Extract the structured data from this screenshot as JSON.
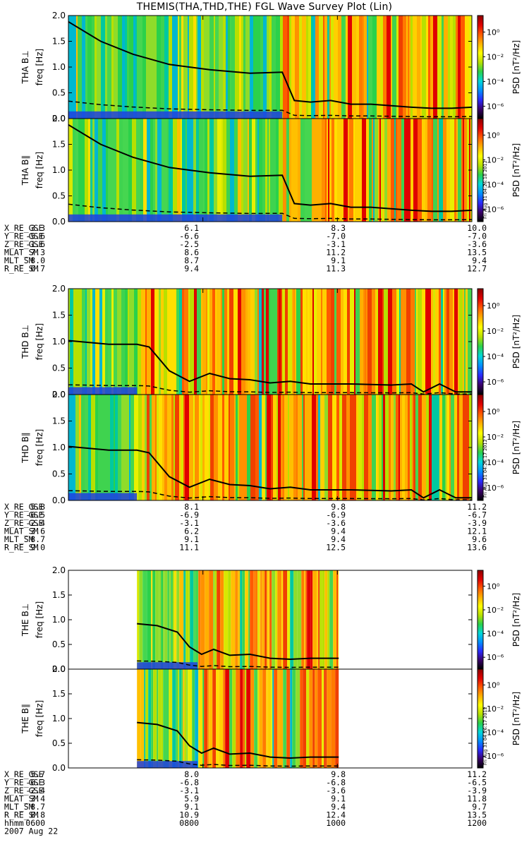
{
  "title": "THEMIS(THA,THD,THE) FGL Wave Survey Plot (Lin)",
  "colors": {
    "colorbar": [
      "#000000",
      "#3a006a",
      "#2a2aff",
      "#0090ff",
      "#00d8d8",
      "#2bd14a",
      "#b8e000",
      "#ffff00",
      "#ffb000",
      "#ff5a00",
      "#e00000",
      "#8b0000"
    ]
  },
  "chart_data": [
    {
      "type": "heatmap",
      "name": "THA",
      "panels": [
        {
          "ylabel_probe": "THA B⊥",
          "ylabel_axis": "freq [Hz]"
        },
        {
          "ylabel_probe": "THA B∥",
          "ylabel_axis": "freq [Hz]"
        }
      ],
      "ylim": [
        0,
        2.0
      ],
      "ytick_labels": [
        "0.0",
        "0.5",
        "1.0",
        "1.5",
        "2.0"
      ],
      "colorbar": {
        "label": "PSD [nT²/Hz]",
        "tick_labels": [
          "10⁰",
          "10⁻²",
          "10⁻⁴",
          "10⁻⁶"
        ]
      },
      "stamp": "Fri Aug 31 04:26:18 2012",
      "activity_start": 0.53,
      "gyro_x": [
        0,
        0.08,
        0.16,
        0.25,
        0.35,
        0.45,
        0.53,
        0.56,
        0.6,
        0.65,
        0.7,
        0.75,
        0.8,
        0.85,
        0.9,
        0.95,
        1.0
      ],
      "gyro_f": [
        1.88,
        1.5,
        1.25,
        1.05,
        0.95,
        0.88,
        0.9,
        0.35,
        0.32,
        0.35,
        0.28,
        0.28,
        0.25,
        0.22,
        0.2,
        0.2,
        0.22
      ],
      "ephemeris": {
        "X_RE_GSE": [
          "3.3",
          "6.1",
          "8.3",
          "10.0"
        ],
        "Y_RE_GSE": [
          "-5.6",
          "-6.6",
          "-7.0",
          "-7.0"
        ],
        "Z_RE_GSE": [
          "-1.6",
          "-2.5",
          "-3.1",
          "-3.6"
        ],
        "MLAT_SM": [
          "7.3",
          "8.6",
          "11.2",
          "13.5"
        ],
        "MLT_SM": [
          "8.0",
          "8.7",
          "9.1",
          "9.4"
        ],
        "R_RE_SM": [
          "6.7",
          "9.4",
          "11.3",
          "12.7"
        ]
      }
    },
    {
      "type": "heatmap",
      "name": "THD",
      "panels": [
        {
          "ylabel_probe": "THD B⊥",
          "ylabel_axis": "freq [Hz]"
        },
        {
          "ylabel_probe": "THD B∥",
          "ylabel_axis": "freq [Hz]"
        }
      ],
      "ylim": [
        0,
        2.0
      ],
      "ytick_labels": [
        "0.0",
        "0.5",
        "1.0",
        "1.5",
        "2.0"
      ],
      "colorbar": {
        "label": "PSD [nT²/Hz]",
        "tick_labels": [
          "10⁰",
          "10⁻²",
          "10⁻⁴",
          "10⁻⁶"
        ]
      },
      "stamp": "Fri Aug 31 04:26:17 2012",
      "activity_start": 0.17,
      "gyro_x": [
        0,
        0.1,
        0.17,
        0.2,
        0.25,
        0.3,
        0.35,
        0.4,
        0.45,
        0.5,
        0.55,
        0.6,
        0.7,
        0.8,
        0.85,
        0.88,
        0.92,
        0.96,
        1.0
      ],
      "gyro_f": [
        1.02,
        0.95,
        0.95,
        0.9,
        0.45,
        0.25,
        0.4,
        0.3,
        0.28,
        0.22,
        0.25,
        0.2,
        0.2,
        0.18,
        0.2,
        0.05,
        0.2,
        0.05,
        0.05
      ],
      "ephemeris": {
        "X_RE_GSE": [
          "5.8",
          "8.1",
          "9.8",
          "11.2"
        ],
        "Y_RE_GSE": [
          "-6.5",
          "-6.9",
          "-6.9",
          "-6.7"
        ],
        "Z_RE_GSE": [
          "-2.4",
          "-3.1",
          "-3.6",
          "-3.9"
        ],
        "MLAT_SM": [
          "3.6",
          "6.2",
          "9.4",
          "12.1"
        ],
        "MLT_SM": [
          "8.7",
          "9.1",
          "9.4",
          "9.6"
        ],
        "R_RE_SM": [
          "9.0",
          "11.1",
          "12.5",
          "13.6"
        ]
      }
    },
    {
      "type": "heatmap",
      "name": "THE",
      "panels": [
        {
          "ylabel_probe": "THE B⊥",
          "ylabel_axis": "freq [Hz]"
        },
        {
          "ylabel_probe": "THE B∥",
          "ylabel_axis": "freq [Hz]"
        }
      ],
      "ylim": [
        0,
        2.0
      ],
      "ytick_labels": [
        "0.0",
        "0.5",
        "1.0",
        "1.5",
        "2.0"
      ],
      "colorbar": {
        "label": "PSD [nT²/Hz]",
        "tick_labels": [
          "10⁰",
          "10⁻²",
          "10⁻⁴",
          "10⁻⁶"
        ]
      },
      "stamp": "Fri Aug 31 04:26:17 2012",
      "data_range": [
        0.17,
        0.67
      ],
      "activity_start": 0.32,
      "gyro_x": [
        0.17,
        0.22,
        0.27,
        0.3,
        0.33,
        0.36,
        0.4,
        0.45,
        0.5,
        0.55,
        0.6,
        0.67
      ],
      "gyro_f": [
        0.92,
        0.88,
        0.75,
        0.45,
        0.3,
        0.4,
        0.28,
        0.3,
        0.22,
        0.2,
        0.22,
        0.22
      ],
      "ephemeris": {
        "X_RE_GSE": [
          "5.7",
          "8.0",
          "9.8",
          "11.2"
        ],
        "Y_RE_GSE": [
          "-6.3",
          "-6.8",
          "-6.8",
          "-6.5"
        ],
        "Z_RE_GSE": [
          "-2.4",
          "-3.1",
          "-3.6",
          "-3.9"
        ],
        "MLAT_SM": [
          "3.4",
          "5.9",
          "9.1",
          "11.8"
        ],
        "MLT_SM": [
          "8.7",
          "9.1",
          "9.4",
          "9.7"
        ],
        "R_RE_SM": [
          "8.8",
          "10.9",
          "12.4",
          "13.5"
        ]
      },
      "time_axis": {
        "label": "hhmm",
        "ticks": [
          "0600",
          "0800",
          "1000",
          "1200"
        ],
        "date": "2007 Aug 22"
      }
    }
  ]
}
